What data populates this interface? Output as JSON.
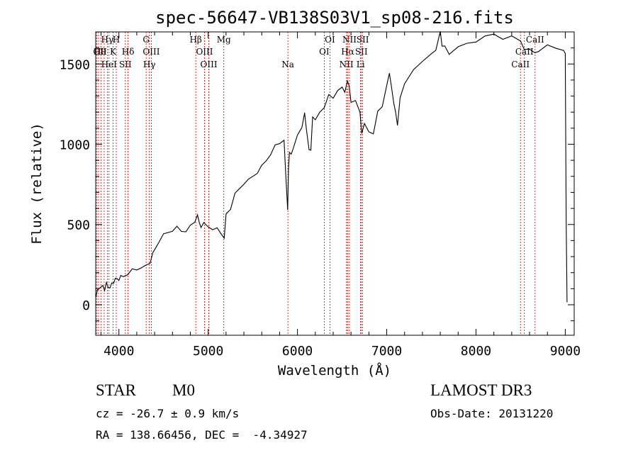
{
  "chart_data": {
    "type": "line",
    "title": "spec-56647-VB138S03V1_sp08-216.fits",
    "xlabel": "Wavelength (Å)",
    "ylabel": "Flux (relative)",
    "xlim": [
      3740,
      9100
    ],
    "ylim": [
      -190,
      1700
    ],
    "xticks": [
      4000,
      5000,
      6000,
      7000,
      8000,
      9000
    ],
    "xtick_labels": [
      "4000",
      "5000",
      "6000",
      "7000",
      "8000",
      "9000"
    ],
    "yticks": [
      0,
      500,
      1000,
      1500
    ],
    "ytick_labels": [
      "0",
      "500",
      "1000",
      "1500"
    ],
    "grid": false,
    "series": [
      {
        "name": "flux",
        "x": [
          3740,
          3760,
          3780,
          3800,
          3820,
          3840,
          3860,
          3880,
          3900,
          3920,
          3940,
          3960,
          3980,
          4000,
          4020,
          4050,
          4100,
          4150,
          4200,
          4250,
          4300,
          4350,
          4380,
          4400,
          4450,
          4500,
          4550,
          4600,
          4650,
          4700,
          4750,
          4800,
          4850,
          4880,
          4900,
          4920,
          4950,
          5000,
          5050,
          5100,
          5150,
          5180,
          5200,
          5250,
          5300,
          5350,
          5400,
          5450,
          5500,
          5550,
          5600,
          5650,
          5700,
          5750,
          5800,
          5850,
          5870,
          5890,
          5900,
          5910,
          5930,
          5950,
          6000,
          6050,
          6080,
          6100,
          6130,
          6150,
          6170,
          6200,
          6250,
          6300,
          6350,
          6400,
          6450,
          6500,
          6530,
          6560,
          6580,
          6600,
          6650,
          6700,
          6720,
          6750,
          6800,
          6850,
          6900,
          6950,
          7000,
          7030,
          7050,
          7080,
          7100,
          7120,
          7150,
          7200,
          7300,
          7400,
          7500,
          7550,
          7600,
          7620,
          7650,
          7700,
          7800,
          7900,
          8000,
          8100,
          8200,
          8300,
          8400,
          8500,
          8540,
          8600,
          8660,
          8700,
          8800,
          8900,
          8980,
          9000,
          9010,
          9020
        ],
        "values": [
          30,
          90,
          110,
          100,
          120,
          100,
          130,
          110,
          120,
          130,
          140,
          150,
          160,
          160,
          170,
          175,
          200,
          215,
          220,
          245,
          240,
          265,
          310,
          340,
          400,
          430,
          450,
          470,
          480,
          460,
          470,
          490,
          520,
          545,
          510,
          490,
          500,
          485,
          480,
          470,
          440,
          430,
          560,
          600,
          680,
          720,
          760,
          770,
          800,
          830,
          860,
          900,
          950,
          990,
          1010,
          1010,
          800,
          600,
          840,
          950,
          950,
          960,
          1060,
          1120,
          1190,
          1100,
          950,
          960,
          1180,
          1140,
          1200,
          1240,
          1300,
          1290,
          1350,
          1350,
          1330,
          1380,
          1360,
          1270,
          1260,
          1200,
          1080,
          1120,
          1080,
          1080,
          1200,
          1240,
          1350,
          1440,
          1380,
          1240,
          1200,
          1130,
          1280,
          1380,
          1480,
          1510,
          1570,
          1570,
          1700,
          1620,
          1600,
          1560,
          1620,
          1620,
          1640,
          1690,
          1680,
          1660,
          1660,
          1640,
          1600,
          1580,
          1570,
          1590,
          1610,
          1600,
          1600,
          1560,
          520,
          0
        ]
      }
    ],
    "lines": [
      {
        "wl": 3727,
        "labels": [
          "OII"
        ],
        "x_rows": [
          -1
        ]
      },
      {
        "wl": 3750,
        "labels": [
          "Hθ"
        ],
        "x_rows": [
          -1
        ]
      },
      {
        "wl": 3772,
        "labels": [],
        "x_rows": []
      },
      {
        "wl": 3798,
        "labels": [],
        "x_rows": []
      },
      {
        "wl": 3835,
        "labels": [],
        "x_rows": []
      },
      {
        "wl": 3870,
        "labels": [
          "Hγ"
        ],
        "x_rows": [
          0
        ]
      },
      {
        "wl": 3889,
        "labels": [
          "HeI"
        ],
        "x_rows": [
          2
        ]
      },
      {
        "wl": 3934,
        "labels": [
          "K"
        ],
        "x_rows": [
          1
        ]
      },
      {
        "wl": 3970,
        "labels": [
          "H"
        ],
        "x_rows": [
          0
        ]
      },
      {
        "wl": 4072,
        "labels": [
          "SII"
        ],
        "x_rows": [
          2
        ]
      },
      {
        "wl": 4102,
        "labels": [
          "Hδ"
        ],
        "x_rows": [
          1
        ]
      },
      {
        "wl": 4305,
        "labels": [
          "G"
        ],
        "x_rows": [
          0
        ]
      },
      {
        "wl": 4341,
        "labels": [
          "Hγ"
        ],
        "x_rows": [
          2
        ]
      },
      {
        "wl": 4363,
        "labels": [
          "OIII"
        ],
        "x_rows": [
          1
        ]
      },
      {
        "wl": 4861,
        "labels": [
          "Hβ"
        ],
        "x_rows": [
          0
        ]
      },
      {
        "wl": 4959,
        "labels": [
          "OIII"
        ],
        "x_rows": [
          1
        ]
      },
      {
        "wl": 5007,
        "labels": [
          "OIII"
        ],
        "x_rows": [
          2
        ]
      },
      {
        "wl": 5175,
        "labels": [
          "Mg"
        ],
        "x_rows": [
          0
        ]
      },
      {
        "wl": 5893,
        "labels": [
          "Na"
        ],
        "x_rows": [
          2
        ]
      },
      {
        "wl": 6300,
        "labels": [
          "OI"
        ],
        "x_rows": [
          1
        ]
      },
      {
        "wl": 6364,
        "labels": [
          "OI"
        ],
        "x_rows": [
          0
        ]
      },
      {
        "wl": 6548,
        "labels": [
          "NII"
        ],
        "x_rows": [
          2
        ]
      },
      {
        "wl": 6563,
        "labels": [
          "Hα"
        ],
        "x_rows": [
          1
        ]
      },
      {
        "wl": 6583,
        "labels": [
          "NII"
        ],
        "x_rows": [
          0
        ]
      },
      {
        "wl": 6707,
        "labels": [
          "Li"
        ],
        "x_rows": [
          2
        ]
      },
      {
        "wl": 6716,
        "labels": [
          "SII"
        ],
        "x_rows": [
          1
        ]
      },
      {
        "wl": 6731,
        "labels": [
          "SII"
        ],
        "x_rows": [
          0
        ]
      },
      {
        "wl": 8498,
        "labels": [
          "CaII"
        ],
        "x_rows": [
          2
        ]
      },
      {
        "wl": 8542,
        "labels": [
          "CaII"
        ],
        "x_rows": [
          1
        ]
      },
      {
        "wl": 8662,
        "labels": [
          "CaII"
        ],
        "x_rows": [
          0
        ]
      }
    ]
  },
  "info": {
    "class_label": "STAR",
    "subclass": "M0",
    "survey": "LAMOST DR3",
    "cz": "cz = -26.7 ± 0.9 km/s",
    "obs_date": "Obs-Date: 20131220",
    "coords": "RA = 138.66456, DEC =  -4.34927"
  },
  "colors": {
    "spectrum": "#000000",
    "line_markers": "#cc0000",
    "axes": "#000000",
    "background": "#ffffff"
  }
}
